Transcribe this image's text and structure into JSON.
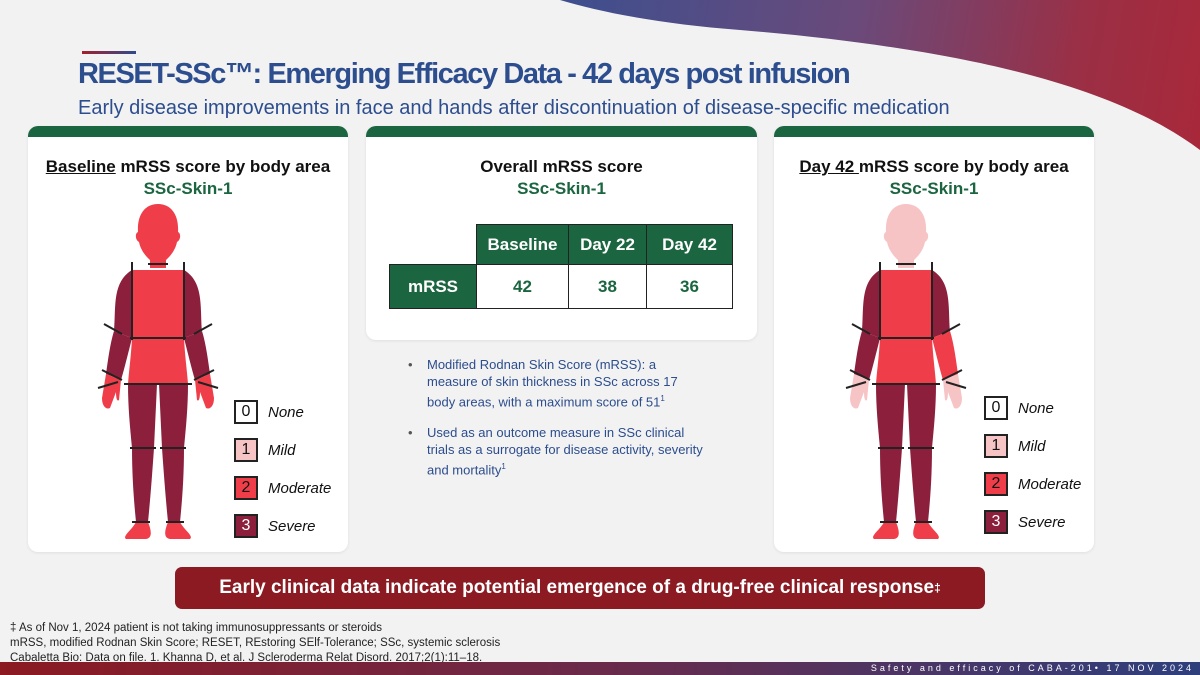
{
  "header": {
    "title": "RESET-SSc™: Emerging Efficacy Data - 42 days post infusion",
    "subtitle": "Early disease improvements in face and hands after discontinuation of disease-specific medication"
  },
  "colors": {
    "score0": "#ffffff",
    "score1": "#f7c4c6",
    "score2": "#ef3e4a",
    "score3": "#8c1f3c",
    "green": "#1b6540",
    "blue": "#2c4d8e",
    "banner": "#8b1a22"
  },
  "legend": [
    {
      "score": "0",
      "label": "None"
    },
    {
      "score": "1",
      "label": "Mild"
    },
    {
      "score": "2",
      "label": "Moderate"
    },
    {
      "score": "3",
      "label": "Severe"
    }
  ],
  "baseline": {
    "title_u": "Baseline",
    "title_rest": " mRSS score by body area",
    "subject": "SSc-Skin-1",
    "scores": {
      "face": 2,
      "chest": 2,
      "abdomen": 2,
      "upper_arm_r": 3,
      "upper_arm_l": 3,
      "forearm_r": 3,
      "forearm_l": 3,
      "hand_r": 2,
      "hand_l": 2,
      "thigh_r": 3,
      "thigh_l": 3,
      "leg_r": 3,
      "leg_l": 3,
      "foot_r": 2,
      "foot_l": 2
    }
  },
  "day42": {
    "title_u": "Day 42 ",
    "title_rest": "mRSS score by body area",
    "subject": "SSc-Skin-1",
    "scores": {
      "face": 1,
      "chest": 2,
      "abdomen": 2,
      "upper_arm_r": 3,
      "upper_arm_l": 3,
      "forearm_r": 3,
      "forearm_l": 2,
      "hand_r": 1,
      "hand_l": 1,
      "thigh_r": 3,
      "thigh_l": 3,
      "leg_r": 3,
      "leg_l": 3,
      "foot_r": 2,
      "foot_l": 2
    }
  },
  "overall": {
    "title": "Overall mRSS score",
    "subject": "SSc-Skin-1",
    "columns": [
      "Baseline",
      "Day 22",
      "Day 42"
    ],
    "row_label": "mRSS",
    "values": [
      "42",
      "38",
      "36"
    ]
  },
  "bullets": [
    {
      "text": "Modified Rodnan Skin Score (mRSS): a measure of skin thickness in SSc across 17 body areas, with a maximum score of 51",
      "sup": "1"
    },
    {
      "text": "Used as an outcome measure in SSc clinical trials as a surrogate for disease activity, severity and mortality",
      "sup": "1"
    }
  ],
  "banner": {
    "text": "Early clinical data indicate potential emergence of a drug-free clinical response",
    "sup": "‡"
  },
  "footnotes": [
    "‡ As of Nov 1, 2024 patient is not taking immunosuppressants or steroids",
    "mRSS, modified Rodnan Skin Score; RESET, REstoring SElf-Tolerance; SSc, systemic sclerosis",
    "Cabaletta Bio: Data on file. 1. Khanna D, et al. J Scleroderma Relat Disord. 2017;2(1):11–18."
  ],
  "footer_bar": "Safety and efficacy of CABA-201• 17 NOV 2024"
}
